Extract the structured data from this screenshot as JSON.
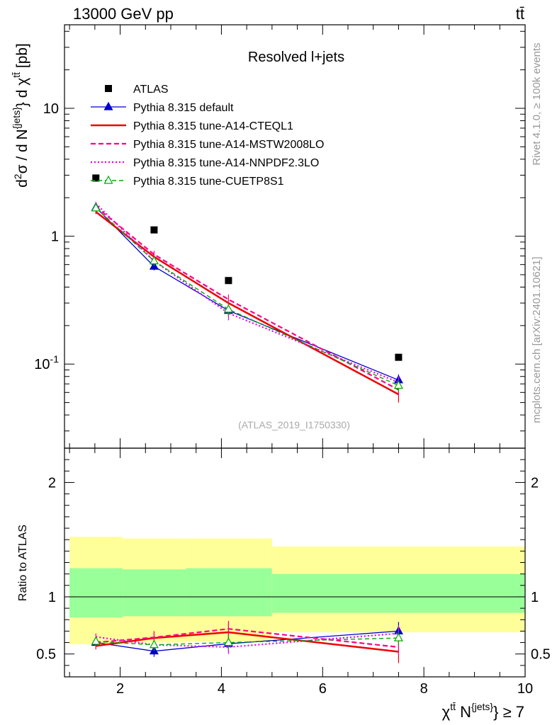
{
  "header": {
    "left": "13000 GeV pp",
    "right": "tt̄"
  },
  "side_labels": {
    "rivet": "Rivet 4.1.0, ≥ 100k events",
    "mcplots": "mcplots.cern.ch [arXiv:2401.10621]"
  },
  "colors": {
    "data": "#000000",
    "default": "#0000cc",
    "cteql1": "#ee0000",
    "mstw": "#ff0088",
    "nnpdf": "#ee00ee",
    "cuetp": "#00aa00",
    "band_outer": "#ffff99",
    "band_inner": "#99ff99"
  },
  "chart_data": {
    "type": "line",
    "title": "Resolved l+jets",
    "watermark": "(ATLAS_2019_I1750330)",
    "xlabel": "χ^{tt̄} N^{jets} ≥ 7",
    "ylabel": "d²σ / d N^{jets} d χ^{tt̄} [pb]",
    "ratio_ylabel": "Ratio to ATLAS",
    "xlim": [
      0.9,
      10.0
    ],
    "ylim": [
      0.022,
      45
    ],
    "yscale": "log",
    "ratio_ylim": [
      0.3,
      2.3
    ],
    "x_ticks": [
      "2",
      "4",
      "6",
      "8",
      "10"
    ],
    "y_ticks": [
      "10^{-1}",
      "1",
      "10"
    ],
    "ratio_ticks": [
      "0.5",
      "1",
      "2"
    ],
    "bins": [
      [
        1.0,
        2.05
      ],
      [
        2.05,
        3.3
      ],
      [
        3.3,
        5.0
      ],
      [
        5.0,
        10.0
      ]
    ],
    "x": [
      1.52,
      2.67,
      4.14,
      7.5
    ],
    "legend": [
      {
        "key": "data",
        "label": "ATLAS"
      },
      {
        "key": "default",
        "label": "Pythia 8.315 default"
      },
      {
        "key": "cteql1",
        "label": "Pythia 8.315 tune-A14-CTEQL1"
      },
      {
        "key": "mstw",
        "label": "Pythia 8.315 tune-A14-MSTW2008LO"
      },
      {
        "key": "nnpdf",
        "label": "Pythia 8.315 tune-A14-NNPDF2.3LO"
      },
      {
        "key": "cuetp",
        "label": "Pythia 8.315 tune-CUETP8S1"
      }
    ],
    "data_values": [
      2.85,
      1.12,
      0.45,
      0.113
    ],
    "series": [
      {
        "key": "default",
        "name": "Pythia 8.315 default",
        "values": [
          1.68,
          0.58,
          0.262,
          0.075
        ],
        "errors": [
          0.05,
          0.04,
          0.025,
          0.008
        ]
      },
      {
        "key": "cteql1",
        "name": "Pythia 8.315 tune-A14-CTEQL1",
        "values": [
          1.55,
          0.69,
          0.3,
          0.058
        ],
        "errors": [
          0.06,
          0.06,
          0.03,
          0.008
        ]
      },
      {
        "key": "mstw",
        "name": "Pythia 8.315 tune-A14-MSTW2008LO",
        "values": [
          1.7,
          0.72,
          0.32,
          0.063
        ],
        "errors": [
          0.05,
          0.05,
          0.03,
          0.007
        ]
      },
      {
        "key": "nnpdf",
        "name": "Pythia 8.315 tune-A14-NNPDF2.3LO",
        "values": [
          1.8,
          0.64,
          0.25,
          0.072
        ],
        "errors": [
          0.06,
          0.05,
          0.03,
          0.008
        ]
      },
      {
        "key": "cuetp",
        "name": "Pythia 8.315 tune-CUETP8S1",
        "values": [
          1.66,
          0.64,
          0.268,
          0.068
        ],
        "errors": [
          0.05,
          0.05,
          0.03,
          0.007
        ]
      }
    ],
    "ratio_series": [
      {
        "key": "default",
        "values": [
          0.6,
          0.525,
          0.59,
          0.7
        ],
        "errors": [
          0.03,
          0.05,
          0.07,
          0.08
        ]
      },
      {
        "key": "cteql1",
        "values": [
          0.57,
          0.64,
          0.69,
          0.52
        ],
        "errors": [
          0.03,
          0.06,
          0.08,
          0.1
        ]
      },
      {
        "key": "mstw",
        "values": [
          0.6,
          0.645,
          0.72,
          0.56
        ],
        "errors": [
          0.03,
          0.05,
          0.07,
          0.07
        ]
      },
      {
        "key": "nnpdf",
        "values": [
          0.65,
          0.58,
          0.56,
          0.68
        ],
        "errors": [
          0.03,
          0.05,
          0.06,
          0.07
        ]
      },
      {
        "key": "cuetp",
        "values": [
          0.61,
          0.58,
          0.6,
          0.64
        ],
        "errors": [
          0.03,
          0.05,
          0.06,
          0.06
        ]
      }
    ],
    "band_outer": [
      [
        0.585,
        1.525
      ],
      [
        0.6,
        1.51
      ],
      [
        0.61,
        1.51
      ],
      [
        0.69,
        1.44
      ]
    ],
    "band_inner": [
      [
        0.82,
        1.25
      ],
      [
        0.83,
        1.24
      ],
      [
        0.83,
        1.25
      ],
      [
        0.86,
        1.2
      ]
    ]
  }
}
